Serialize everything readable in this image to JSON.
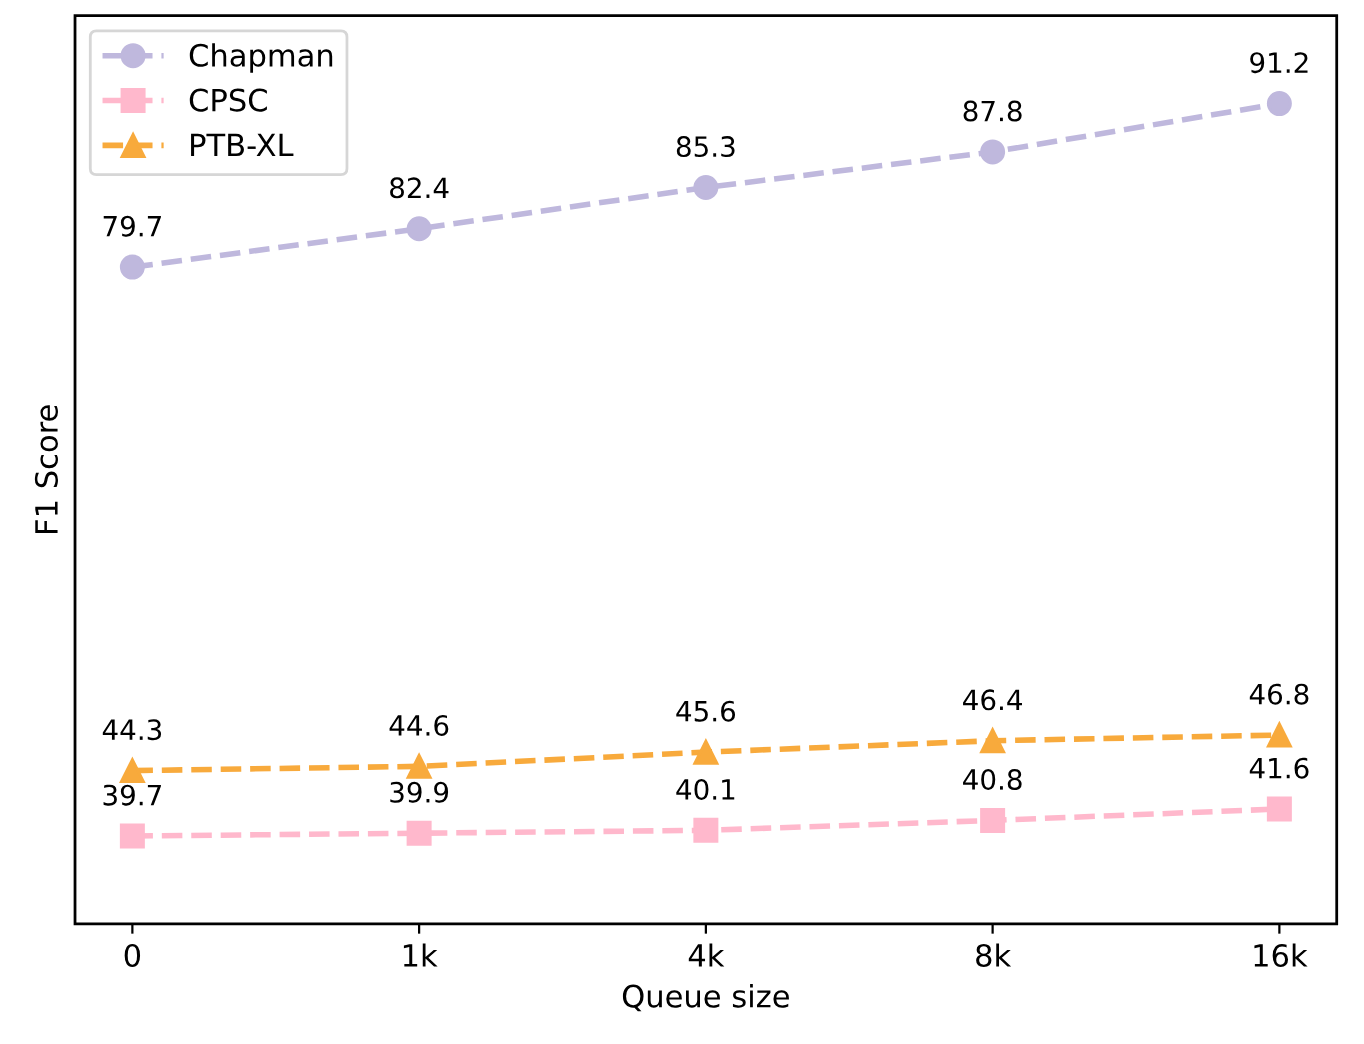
{
  "chart_data": {
    "type": "line",
    "xlabel": "Queue size",
    "ylabel": "F1 Score",
    "categories": [
      "0",
      "1k",
      "4k",
      "8k",
      "16k"
    ],
    "series": [
      {
        "name": "Chapman",
        "color": "#bfb8dd",
        "marker": "circle",
        "values": [
          79.7,
          82.4,
          85.3,
          87.8,
          91.2
        ]
      },
      {
        "name": "CPSC",
        "color": "#ffb8cc",
        "marker": "square",
        "values": [
          39.7,
          39.9,
          40.1,
          40.8,
          41.6
        ]
      },
      {
        "name": "PTB-XL",
        "color": "#f8aa3c",
        "marker": "triangle",
        "values": [
          44.3,
          44.6,
          45.6,
          46.4,
          46.8
        ]
      }
    ],
    "line_style": "dashed",
    "data_labels": true,
    "legend": "top left",
    "grid": false,
    "tick_labels": "x"
  }
}
